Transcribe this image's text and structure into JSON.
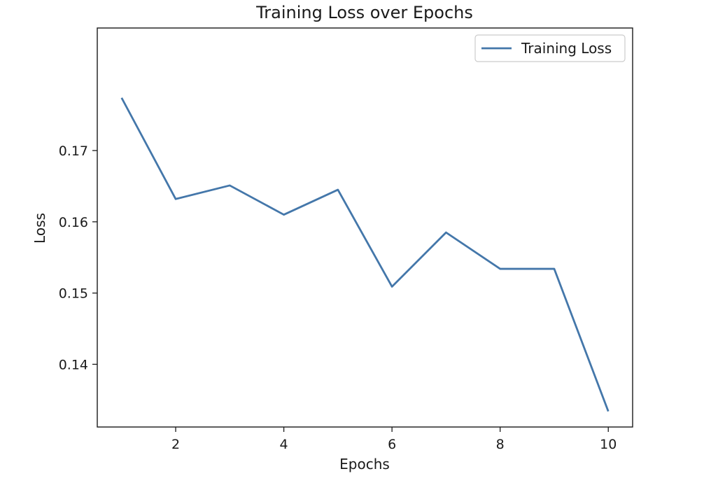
{
  "chart_data": {
    "type": "line",
    "title": "Training Loss over Epochs",
    "xlabel": "Epochs",
    "ylabel": "Loss",
    "x": [
      1,
      2,
      3,
      4,
      5,
      6,
      7,
      8,
      9,
      10
    ],
    "series": [
      {
        "name": "Training Loss",
        "color": "#4477aa",
        "values": [
          0.1774,
          0.1632,
          0.1651,
          0.161,
          0.1645,
          0.1509,
          0.1585,
          0.1534,
          0.1534,
          0.1334
        ]
      }
    ],
    "xlim": [
      0.55,
      10.45
    ],
    "ylim": [
      0.1312,
      0.1872
    ],
    "xticks": [
      2,
      4,
      6,
      8,
      10
    ],
    "xtick_labels": [
      "2",
      "4",
      "6",
      "8",
      "10"
    ],
    "yticks": [
      0.14,
      0.15,
      0.16,
      0.17
    ],
    "ytick_labels": [
      "0.14",
      "0.15",
      "0.16",
      "0.17"
    ],
    "grid": false,
    "legend_position": "top-right"
  }
}
